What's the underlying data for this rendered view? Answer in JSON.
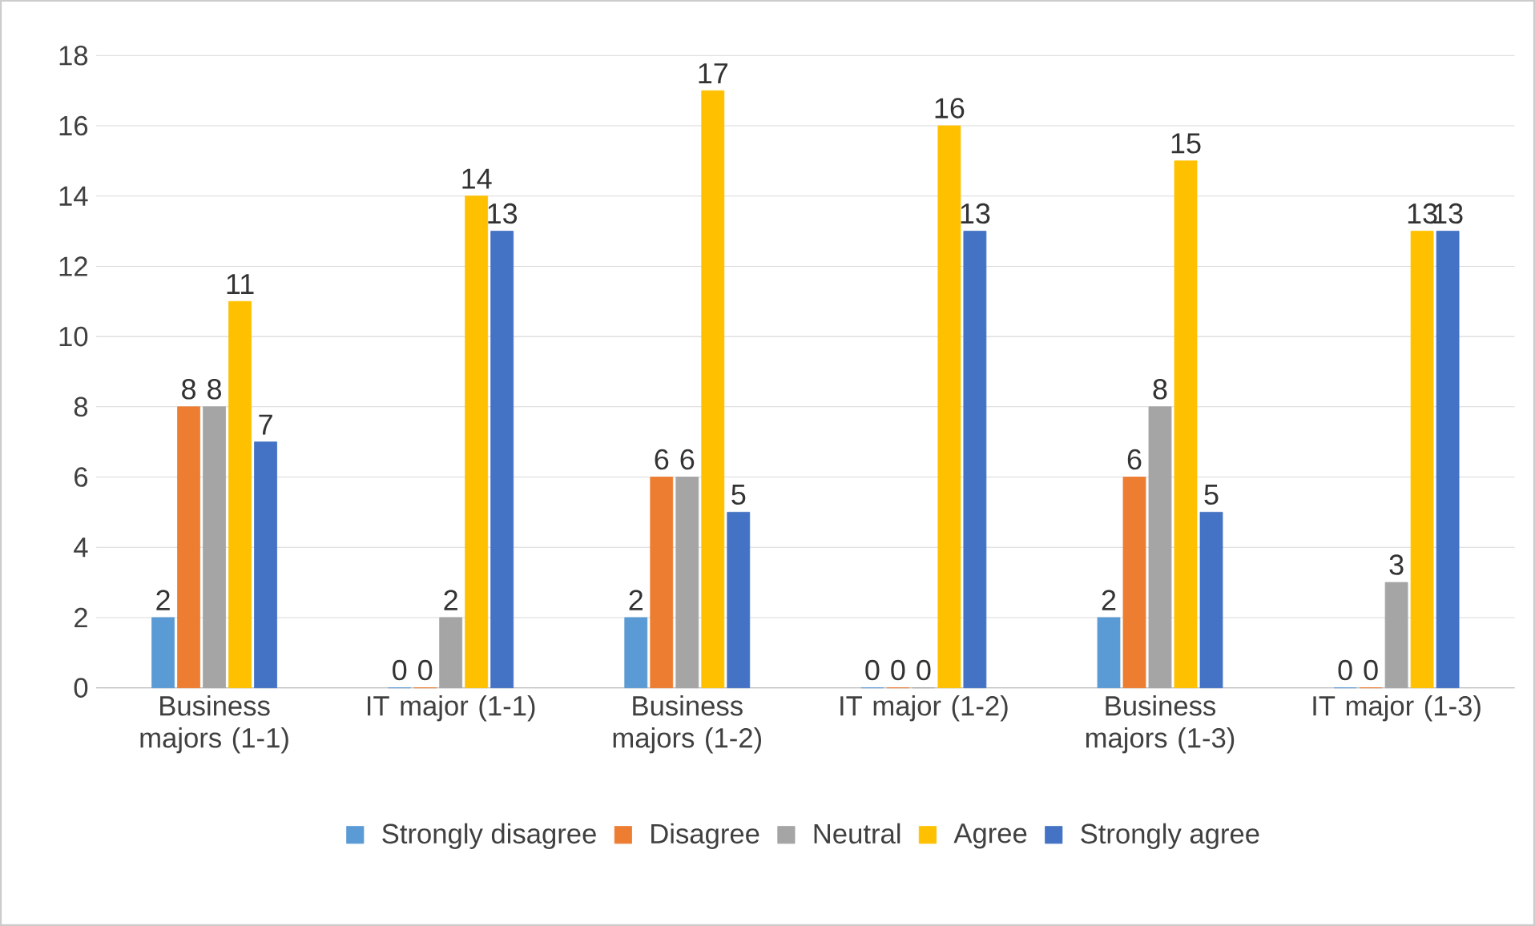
{
  "chart_data": {
    "type": "bar",
    "categories": [
      "Business majors (1-1)",
      "IT major (1-1)",
      "Business majors (1-2)",
      "IT major (1-2)",
      "Business majors (1-3)",
      "IT major (1-3)"
    ],
    "series": [
      {
        "name": "Strongly disagree",
        "color": "#5b9bd5",
        "values": [
          2,
          0,
          2,
          0,
          2,
          0
        ]
      },
      {
        "name": "Disagree",
        "color": "#ed7d31",
        "values": [
          8,
          0,
          6,
          0,
          6,
          0
        ]
      },
      {
        "name": "Neutral",
        "color": "#a5a5a5",
        "values": [
          8,
          2,
          6,
          0,
          8,
          3
        ]
      },
      {
        "name": "Agree",
        "color": "#ffc000",
        "values": [
          11,
          14,
          17,
          16,
          15,
          13
        ]
      },
      {
        "name": "Strongly agree",
        "color": "#4472c4",
        "values": [
          7,
          13,
          5,
          13,
          5,
          13
        ]
      }
    ],
    "ylim": [
      0,
      18
    ],
    "yticks": [
      0,
      2,
      4,
      6,
      8,
      10,
      12,
      14,
      16,
      18
    ],
    "grid": "y",
    "legend": "bottom",
    "data_labels": true
  }
}
